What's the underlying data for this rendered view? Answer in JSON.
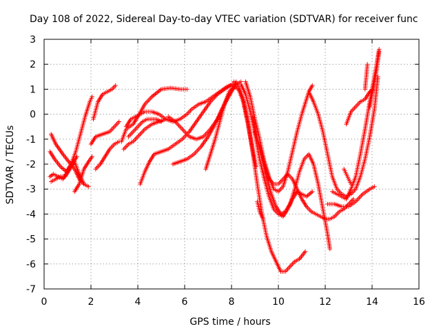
{
  "chart_data": {
    "type": "scatter",
    "title": "Day 108 of 2022, Sidereal Day-to-day VTEC variation (SDTVAR) for receiver func",
    "xlabel": "GPS time / hours",
    "ylabel": "SDTVAR / TECUs",
    "xlim": [
      0,
      16
    ],
    "ylim": [
      -7,
      3
    ],
    "xticks": [
      "0",
      "2",
      "4",
      "6",
      "8",
      "10",
      "12",
      "14",
      "16"
    ],
    "yticks": [
      "-7",
      "-6",
      "-5",
      "-4",
      "-3",
      "-2",
      "-1",
      "0",
      "1",
      "2",
      "3"
    ],
    "grid": true,
    "legend": "none",
    "marker": "+",
    "color": "#ff0000",
    "series": [
      {
        "x": [
          0.25,
          0.45,
          0.7,
          0.95,
          1.15,
          1.35,
          1.55,
          1.75,
          1.95,
          2.05
        ],
        "y": [
          -1.5,
          -1.8,
          -2.1,
          -2.3,
          -2.0,
          -1.5,
          -0.8,
          -0.1,
          0.5,
          0.7
        ]
      },
      {
        "x": [
          0.3,
          0.5,
          0.8,
          1.05,
          1.3,
          1.5,
          1.7,
          1.9
        ],
        "y": [
          -0.8,
          -1.2,
          -1.6,
          -1.9,
          -2.2,
          -2.6,
          -2.8,
          -2.9
        ]
      },
      {
        "x": [
          0.25,
          0.4,
          0.6,
          0.8,
          1.0,
          1.2,
          1.4
        ],
        "y": [
          -2.5,
          -2.4,
          -2.5,
          -2.6,
          -2.3,
          -2.0,
          -1.7
        ]
      },
      {
        "x": [
          0.3,
          0.5,
          0.7,
          0.9,
          1.1,
          1.3,
          1.5,
          1.7
        ],
        "y": [
          -2.7,
          -2.6,
          -2.5,
          -2.5,
          -2.2,
          -1.9,
          -2.4,
          -2.8
        ]
      },
      {
        "x": [
          1.3,
          1.5,
          1.7,
          1.9,
          2.05
        ],
        "y": [
          -3.1,
          -2.8,
          -2.2,
          -1.9,
          -1.7
        ]
      },
      {
        "x": [
          2.1,
          2.3,
          2.5,
          2.7,
          2.9,
          3.05
        ],
        "y": [
          -0.2,
          0.5,
          0.8,
          0.9,
          1.0,
          1.15
        ]
      },
      {
        "x": [
          2.2,
          2.4,
          2.6,
          2.8,
          3.0,
          3.2
        ],
        "y": [
          -2.2,
          -2.0,
          -1.7,
          -1.4,
          -1.2,
          -1.1
        ]
      },
      {
        "x": [
          2.0,
          2.2,
          2.5,
          2.8,
          3.0,
          3.2
        ],
        "y": [
          -1.2,
          -0.9,
          -0.8,
          -0.7,
          -0.5,
          -0.3
        ]
      },
      {
        "x": [
          3.3,
          3.5,
          3.8,
          4.0,
          4.3,
          4.6,
          5.0,
          5.4,
          5.8,
          6.1
        ],
        "y": [
          -1.1,
          -0.6,
          -0.4,
          -0.1,
          0.4,
          0.7,
          1.0,
          1.05,
          1.0,
          1.0
        ]
      },
      {
        "x": [
          3.5,
          3.7,
          3.9,
          4.1,
          4.3,
          4.6,
          4.9,
          5.2,
          5.5,
          5.8,
          6.1,
          6.3,
          6.6,
          6.9,
          7.2,
          7.5,
          7.8,
          8.05
        ],
        "y": [
          -0.5,
          -0.2,
          -0.1,
          0.0,
          0.1,
          0.1,
          0.0,
          -0.2,
          -0.3,
          -0.2,
          0.0,
          0.2,
          0.4,
          0.5,
          0.7,
          0.9,
          1.1,
          1.2
        ]
      },
      {
        "x": [
          3.4,
          3.6,
          3.8,
          4.0,
          4.3,
          4.6,
          4.9,
          5.2
        ],
        "y": [
          -1.4,
          -1.2,
          -1.1,
          -0.9,
          -0.6,
          -0.4,
          -0.3,
          -0.2
        ]
      },
      {
        "x": [
          3.6,
          3.8,
          4.0,
          4.2,
          4.4,
          4.6,
          4.8,
          5.0
        ],
        "y": [
          -0.9,
          -0.7,
          -0.5,
          -0.3,
          -0.2,
          -0.2,
          -0.2,
          -0.3
        ]
      },
      {
        "x": [
          4.1,
          4.3,
          4.5,
          4.7,
          5.0,
          5.3,
          5.6,
          5.9,
          6.2,
          6.5,
          6.8,
          7.1,
          7.4,
          7.7,
          7.95
        ],
        "y": [
          -2.8,
          -2.3,
          -1.9,
          -1.6,
          -1.5,
          -1.4,
          -1.2,
          -1.0,
          -0.7,
          -0.3,
          0.1,
          0.5,
          0.8,
          1.0,
          1.15
        ]
      },
      {
        "x": [
          5.3,
          5.6,
          5.9,
          6.2,
          6.5,
          6.8,
          7.1,
          7.4,
          7.7,
          8.0,
          8.2
        ],
        "y": [
          -0.1,
          -0.3,
          -0.6,
          -0.9,
          -1.0,
          -0.9,
          -0.6,
          -0.2,
          0.4,
          0.9,
          1.3
        ]
      },
      {
        "x": [
          5.5,
          5.8,
          6.1,
          6.4,
          6.7,
          7.0,
          7.3,
          7.6,
          7.9,
          8.2,
          8.4
        ],
        "y": [
          -2.0,
          -1.9,
          -1.8,
          -1.6,
          -1.3,
          -0.9,
          -0.4,
          0.2,
          0.8,
          1.2,
          1.3
        ]
      },
      {
        "x": [
          6.9,
          7.1,
          7.3,
          7.5,
          7.7,
          7.9,
          8.1,
          8.3,
          8.5,
          8.7,
          8.9,
          9.05
        ],
        "y": [
          -2.2,
          -1.6,
          -1.0,
          -0.3,
          0.4,
          0.9,
          1.1,
          1.0,
          0.5,
          -0.4,
          -1.4,
          -2.1
        ]
      },
      {
        "x": [
          8.1,
          8.3,
          8.5,
          8.7,
          8.9,
          9.1,
          9.3,
          9.5,
          9.7,
          9.9,
          10.1,
          10.3,
          10.5,
          10.7,
          10.9,
          11.15
        ],
        "y": [
          1.3,
          1.1,
          0.6,
          -0.3,
          -1.5,
          -2.8,
          -4.0,
          -4.9,
          -5.5,
          -5.9,
          -6.3,
          -6.3,
          -6.1,
          -5.9,
          -5.8,
          -5.5
        ]
      },
      {
        "x": [
          8.4,
          8.6,
          8.8,
          9.0,
          9.2,
          9.4,
          9.6,
          9.8,
          10.0,
          10.2,
          10.4,
          10.6,
          10.8,
          11.0,
          11.2,
          11.45
        ],
        "y": [
          1.2,
          0.8,
          0.1,
          -0.8,
          -1.8,
          -2.6,
          -3.3,
          -3.8,
          -4.0,
          -4.1,
          -3.8,
          -3.4,
          -3.1,
          -3.2,
          -3.3,
          -3.1
        ]
      },
      {
        "x": [
          8.6,
          8.8,
          9.0,
          9.2,
          9.4,
          9.6,
          9.8,
          10.0,
          10.2,
          10.4,
          10.6,
          10.8,
          11.0,
          11.2,
          11.3,
          11.45
        ],
        "y": [
          1.3,
          0.7,
          -0.2,
          -1.0,
          -1.9,
          -2.5,
          -3.0,
          -3.1,
          -2.9,
          -2.3,
          -1.5,
          -0.7,
          0.0,
          0.6,
          0.9,
          1.15
        ]
      },
      {
        "x": [
          8.9,
          9.1,
          9.3,
          9.5,
          9.7,
          9.9,
          10.1,
          10.3,
          10.5,
          10.7,
          10.9,
          11.1,
          11.3,
          11.5,
          11.7,
          11.9,
          12.1,
          12.2
        ],
        "y": [
          -0.1,
          -1.0,
          -1.8,
          -2.5,
          -3.2,
          -3.7,
          -4.0,
          -3.9,
          -3.6,
          -3.0,
          -2.3,
          -1.8,
          -1.6,
          -2.0,
          -2.8,
          -3.8,
          -4.8,
          -5.4
        ]
      },
      {
        "x": [
          9.0,
          9.2,
          9.4,
          9.6,
          9.8,
          10.0,
          10.2,
          10.4,
          10.6,
          10.8,
          11.0,
          11.2,
          11.4,
          11.6,
          11.8,
          12.0,
          12.2,
          12.4,
          12.6,
          12.8,
          13.0,
          13.2
        ],
        "y": [
          -0.7,
          -1.3,
          -2.0,
          -2.6,
          -2.8,
          -2.8,
          -2.6,
          -2.4,
          -2.6,
          -3.0,
          -3.4,
          -3.7,
          -3.9,
          -4.0,
          -4.1,
          -4.2,
          -4.2,
          -4.1,
          -3.9,
          -3.8,
          -3.6,
          -3.4
        ]
      },
      {
        "x": [
          9.1,
          9.2,
          9.35
        ],
        "y": [
          -3.5,
          -3.9,
          -4.2
        ]
      },
      {
        "x": [
          11.3,
          11.5,
          11.7,
          11.9,
          12.1,
          12.3,
          12.5,
          12.7,
          12.9,
          13.1,
          13.3,
          13.5,
          13.7,
          13.9,
          14.1,
          14.25
        ],
        "y": [
          0.9,
          0.5,
          0.0,
          -0.7,
          -1.6,
          -2.5,
          -3.0,
          -3.2,
          -3.3,
          -3.2,
          -3.0,
          -2.5,
          -1.8,
          -0.9,
          0.2,
          1.5
        ]
      },
      {
        "x": [
          12.3,
          12.5,
          12.7,
          12.9,
          13.1,
          13.3,
          13.5,
          13.7,
          13.9,
          14.1,
          14.3
        ],
        "y": [
          -3.1,
          -3.2,
          -3.3,
          -3.4,
          -3.0,
          -2.5,
          -1.6,
          -0.6,
          0.5,
          1.5,
          2.6
        ]
      },
      {
        "x": [
          12.1,
          12.4,
          12.7,
          13.0,
          13.3,
          13.6,
          13.9,
          14.1
        ],
        "y": [
          -3.6,
          -3.6,
          -3.7,
          -3.7,
          -3.5,
          -3.2,
          -3.0,
          -2.9
        ]
      },
      {
        "x": [
          12.9,
          13.1,
          13.3,
          13.5,
          13.7,
          13.9,
          14.05
        ],
        "y": [
          -0.4,
          0.1,
          0.3,
          0.5,
          0.6,
          0.9,
          1.0
        ]
      },
      {
        "x": [
          12.8,
          12.9,
          13.0,
          13.1
        ],
        "y": [
          -2.2,
          -2.4,
          -2.6,
          -2.8
        ]
      },
      {
        "x": [
          13.9,
          14.0,
          14.1,
          14.2,
          14.3
        ],
        "y": [
          0.3,
          0.8,
          1.3,
          1.8,
          2.5
        ]
      },
      {
        "x": [
          13.7,
          13.75,
          13.8
        ],
        "y": [
          1.0,
          1.5,
          2.0
        ]
      }
    ]
  }
}
